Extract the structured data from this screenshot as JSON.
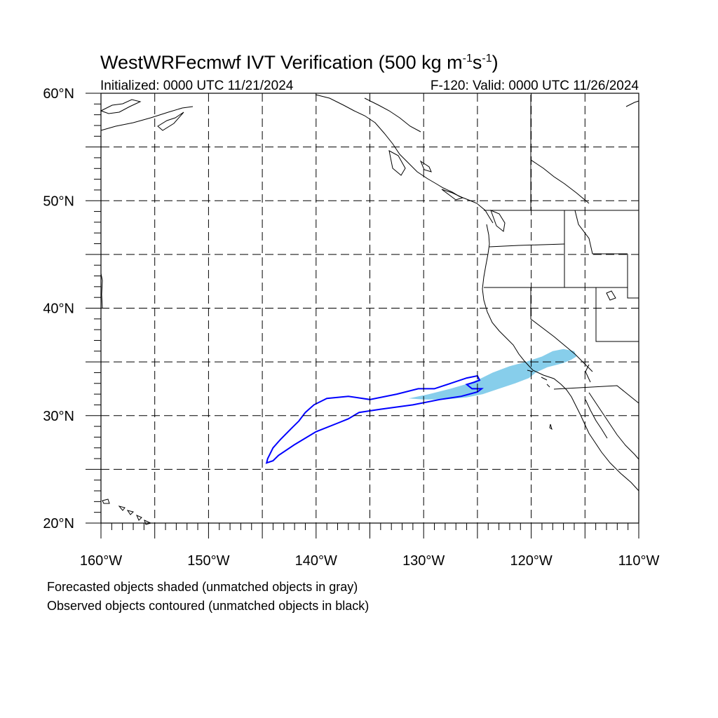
{
  "header": {
    "title_main": "WestWRFecmwf IVT Verification (500 kg m",
    "title_sup1": "-1",
    "title_mid": "s",
    "title_sup2": "-1",
    "title_end": ")",
    "initialized": "Initialized: 0000 UTC 11/21/2024",
    "valid": "F-120: Valid: 0000 UTC 11/26/2024"
  },
  "map": {
    "lat_range": [
      20,
      60
    ],
    "lon_range": [
      -160,
      -110
    ],
    "grid_spacing_deg": 5,
    "lat_labels": [
      {
        "lat": 60,
        "label": "60°N"
      },
      {
        "lat": 50,
        "label": "50°N"
      },
      {
        "lat": 40,
        "label": "40°N"
      },
      {
        "lat": 30,
        "label": "30°N"
      },
      {
        "lat": 20,
        "label": "20°N"
      }
    ],
    "lon_labels": [
      {
        "lon": -160,
        "label": "160°W"
      },
      {
        "lon": -150,
        "label": "150°W"
      },
      {
        "lon": -140,
        "label": "140°W"
      },
      {
        "lon": -130,
        "label": "130°W"
      },
      {
        "lon": -120,
        "label": "120°W"
      },
      {
        "lon": -110,
        "label": "110°W"
      }
    ],
    "colors": {
      "forecast_fill": "#87ceeb",
      "observed_contour": "#0000ff",
      "coastline": "#000000",
      "grid": "#000000"
    },
    "forecast_object_points": [
      [
        -131.4,
        31.6
      ],
      [
        -129.5,
        32.0
      ],
      [
        -127.5,
        32.5
      ],
      [
        -125.8,
        33.0
      ],
      [
        -124.6,
        33.5
      ],
      [
        -123.6,
        34.0
      ],
      [
        -122.0,
        34.6
      ],
      [
        -120.5,
        35.0
      ],
      [
        -119.0,
        35.5
      ],
      [
        -118.0,
        36.0
      ],
      [
        -117.0,
        36.2
      ],
      [
        -116.0,
        36.0
      ],
      [
        -115.8,
        35.5
      ],
      [
        -116.3,
        35.2
      ],
      [
        -117.0,
        34.9
      ],
      [
        -118.5,
        34.5
      ],
      [
        -119.6,
        34.0
      ],
      [
        -120.2,
        33.5
      ],
      [
        -121.5,
        33.0
      ],
      [
        -123.0,
        32.5
      ],
      [
        -124.5,
        32.0
      ],
      [
        -126.0,
        31.7
      ],
      [
        -128.0,
        31.5
      ],
      [
        -130.0,
        31.5
      ]
    ],
    "observed_object_points": [
      [
        -144.5,
        26.0
      ],
      [
        -144.0,
        27.0
      ],
      [
        -143.3,
        27.8
      ],
      [
        -142.3,
        28.8
      ],
      [
        -141.6,
        29.5
      ],
      [
        -141.0,
        30.3
      ],
      [
        -140.2,
        31.0
      ],
      [
        -139.0,
        31.6
      ],
      [
        -137.0,
        31.8
      ],
      [
        -135.0,
        31.5
      ],
      [
        -132.5,
        32.0
      ],
      [
        -130.5,
        32.5
      ],
      [
        -129.0,
        32.5
      ],
      [
        -127.5,
        33.0
      ],
      [
        -126.0,
        33.5
      ],
      [
        -125.0,
        33.7
      ],
      [
        -124.8,
        33.3
      ],
      [
        -125.3,
        33.1
      ],
      [
        -126.0,
        32.9
      ],
      [
        -125.5,
        32.5
      ],
      [
        -124.6,
        32.5
      ],
      [
        -125.0,
        32.2
      ],
      [
        -126.5,
        31.8
      ],
      [
        -128.5,
        31.5
      ],
      [
        -131.0,
        31.0
      ],
      [
        -134.0,
        30.6
      ],
      [
        -136.0,
        30.3
      ],
      [
        -137.0,
        29.7
      ],
      [
        -138.0,
        29.3
      ],
      [
        -140.0,
        28.5
      ],
      [
        -142.0,
        27.3
      ],
      [
        -143.5,
        26.3
      ],
      [
        -144.0,
        25.8
      ],
      [
        -144.6,
        25.6
      ]
    ]
  },
  "footer": {
    "line1": "Forecasted objects shaded (unmatched objects in gray)",
    "line2": "Observed objects contoured (unmatched objects in black)"
  }
}
